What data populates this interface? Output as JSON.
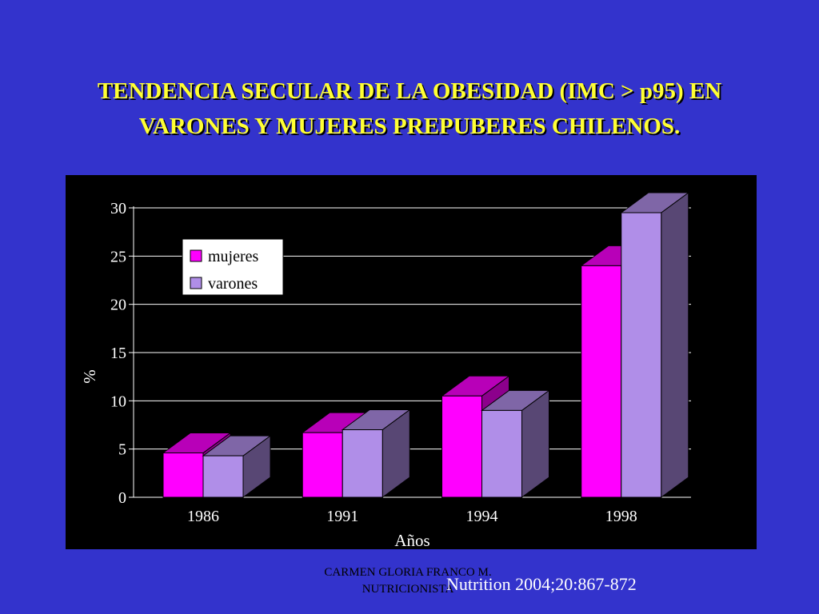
{
  "slide": {
    "title_line1": "TENDENCIA SECULAR DE LA OBESIDAD  (IMC > p95) EN",
    "title_line2": "VARONES Y MUJERES PREPUBERES CHILENOS.",
    "citation": "Nutrition 2004;20:867-872",
    "author_line1": "CARMEN GLORIA FRANCO M.",
    "author_line2": "NUTRICIONISTA"
  },
  "colors": {
    "background": "#3333cc",
    "title": "#ffff33",
    "panel": "#000000",
    "mujeres": "#ff00ff",
    "varones": "#b08ee8"
  },
  "chart_data": {
    "type": "bar",
    "style": "3d-clustered",
    "categories": [
      "1986",
      "1991",
      "1994",
      "1998"
    ],
    "series": [
      {
        "name": "mujeres",
        "values": [
          4.6,
          6.7,
          10.5,
          24.0
        ]
      },
      {
        "name": "varones",
        "values": [
          4.3,
          7.0,
          9.0,
          29.5
        ]
      }
    ],
    "xlabel": "Años",
    "ylabel": "%",
    "ylim": [
      0,
      30
    ],
    "yticks": [
      0,
      5,
      10,
      15,
      20,
      25,
      30
    ],
    "grid": true,
    "legend": "top-left"
  }
}
